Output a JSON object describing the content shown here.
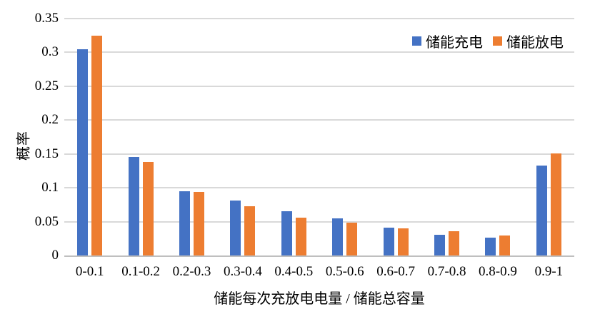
{
  "chart_data": {
    "type": "bar",
    "title": "",
    "categories": [
      "0-0.1",
      "0.1-0.2",
      "0.2-0.3",
      "0.3-0.4",
      "0.4-0.5",
      "0.5-0.6",
      "0.6-0.7",
      "0.7-0.8",
      "0.8-0.9",
      "0.9-1"
    ],
    "series": [
      {
        "name": "储能充电",
        "color": "#4472C4",
        "values": [
          0.305,
          0.146,
          0.095,
          0.081,
          0.065,
          0.055,
          0.041,
          0.031,
          0.026,
          0.133
        ]
      },
      {
        "name": "储能放电",
        "color": "#ED7D31",
        "values": [
          0.325,
          0.138,
          0.094,
          0.073,
          0.056,
          0.048,
          0.04,
          0.036,
          0.03,
          0.151
        ]
      }
    ],
    "xlabel": "储能每次充放电电量 / 储能总容量",
    "ylabel": "概率",
    "ylim": [
      0,
      0.35
    ],
    "yticks": [
      {
        "value": 0,
        "label": "0"
      },
      {
        "value": 0.05,
        "label": "0.05"
      },
      {
        "value": 0.1,
        "label": "0.1"
      },
      {
        "value": 0.15,
        "label": "0.15"
      },
      {
        "value": 0.2,
        "label": "0.2"
      },
      {
        "value": 0.25,
        "label": "0.25"
      },
      {
        "value": 0.3,
        "label": "0.3"
      },
      {
        "value": 0.35,
        "label": "0.35"
      }
    ],
    "grid": true,
    "legend_position": "top-right"
  },
  "colors": {
    "background": "#FFFFFF",
    "gridline": "#D9D9D9",
    "axis_line": "#BFBFBF",
    "text": "#000000"
  }
}
